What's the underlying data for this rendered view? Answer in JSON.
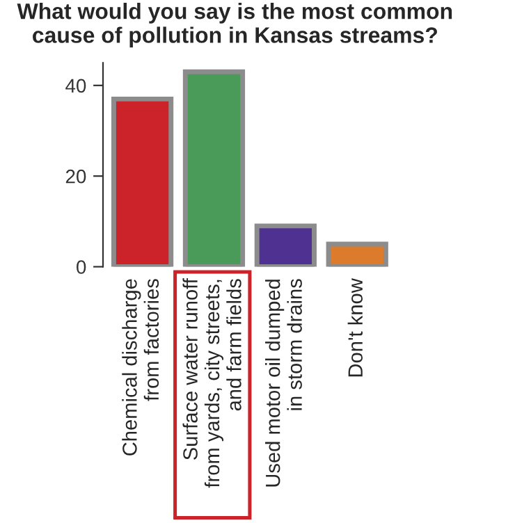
{
  "chart_data": {
    "type": "bar",
    "title": "What would you say is the most common cause of pollution in Kansas streams?",
    "categories": [
      "Chemical discharge\nfrom factories",
      "Surface water runoff\nfrom yards, city streets,\nand farm fields",
      "Used motor oil dumped\nin storm drains",
      "Don't know"
    ],
    "values": [
      37,
      43,
      9,
      5
    ],
    "colors": [
      "#cc2229",
      "#4a9a5a",
      "#4e3190",
      "#db7b2b"
    ],
    "ylim": [
      0,
      45
    ],
    "yticks": [
      0,
      20,
      40
    ],
    "grid": false,
    "legend": false
  }
}
